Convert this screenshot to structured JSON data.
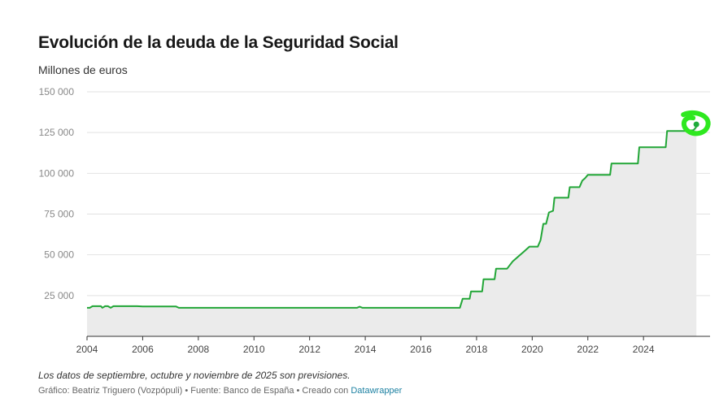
{
  "chart_data": {
    "type": "area",
    "title": "Evolución de la deuda de la Seguridad Social",
    "subtitle": "Millones de euros",
    "xlabel": "",
    "ylabel": "Millones de euros",
    "xlim": [
      2004,
      2026.1
    ],
    "ylim": [
      0,
      150000
    ],
    "grid": true,
    "y_ticks": [
      25000,
      50000,
      75000,
      100000,
      125000,
      150000
    ],
    "y_tick_labels": [
      "25 000",
      "50 000",
      "75 000",
      "100 000",
      "125 000",
      "150 000"
    ],
    "x_ticks": [
      2004,
      2006,
      2008,
      2010,
      2012,
      2014,
      2016,
      2018,
      2020,
      2022,
      2024
    ],
    "x_tick_labels": [
      "2004",
      "2006",
      "2008",
      "2010",
      "2012",
      "2014",
      "2016",
      "2018",
      "2020",
      "2022",
      "2024"
    ],
    "series": [
      {
        "name": "Deuda de la Seguridad Social",
        "color": "#22a637",
        "fill": "#ebebeb",
        "x": [
          2004.0,
          2004.1,
          2004.2,
          2004.5,
          2004.55,
          2004.65,
          2004.75,
          2004.85,
          2004.95,
          2005.0,
          2005.8,
          2006.0,
          2007.2,
          2007.3,
          2013.7,
          2013.8,
          2013.9,
          2014.5,
          2017.0,
          2017.4,
          2017.5,
          2017.75,
          2017.8,
          2018.2,
          2018.25,
          2018.65,
          2018.7,
          2019.05,
          2019.1,
          2019.3,
          2019.7,
          2019.9,
          2020.2,
          2020.3,
          2020.4,
          2020.5,
          2020.6,
          2020.75,
          2020.8,
          2021.3,
          2021.35,
          2021.7,
          2021.8,
          2021.9,
          2022.0,
          2022.8,
          2022.85,
          2023.8,
          2023.85,
          2024.8,
          2024.85,
          2025.5,
          2025.8,
          2025.9
        ],
        "values": [
          17500,
          17500,
          18500,
          18500,
          17500,
          18500,
          18500,
          17500,
          18500,
          18500,
          18500,
          18300,
          18300,
          17500,
          17500,
          18200,
          17500,
          17500,
          17500,
          17500,
          23000,
          23000,
          27500,
          27500,
          35000,
          35000,
          41500,
          41500,
          41500,
          46000,
          52000,
          55000,
          55000,
          59000,
          69000,
          69000,
          76000,
          77000,
          85000,
          85000,
          91500,
          91500,
          95500,
          97000,
          99000,
          99000,
          106000,
          106000,
          116000,
          116000,
          126000,
          126000,
          126500,
          128500
        ]
      }
    ],
    "annotations": []
  },
  "footer": {
    "note": "Los datos de septiembre, octubre y noviembre de 2025 son previsiones.",
    "byline_prefix": "Gráfico: Beatriz Triguero (Vozpópuli) • Fuente: Banco de España • Creado con ",
    "byline_link": "Datawrapper"
  },
  "colors": {
    "line": "#22a637",
    "area": "#ebebeb",
    "grid": "#e2e2e2",
    "axis": "#333333",
    "marker": "#1faa3a",
    "highlight": "#2ee81f"
  }
}
